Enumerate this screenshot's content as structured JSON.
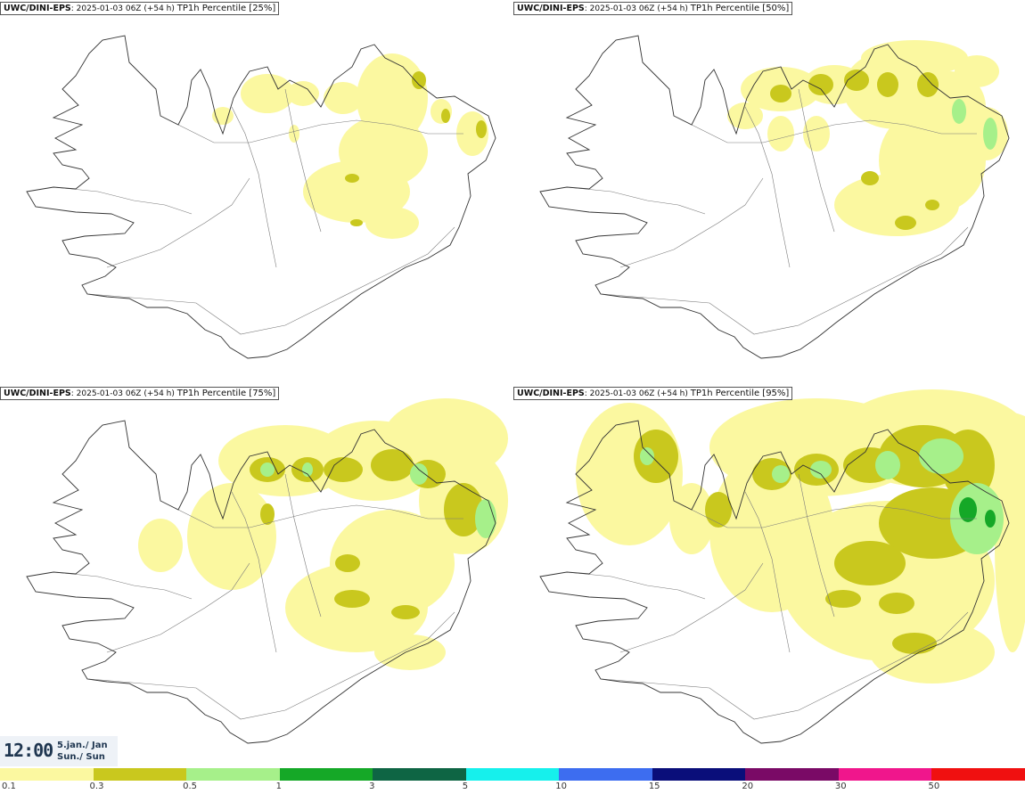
{
  "panels": [
    {
      "model": "UWC/DINI-EPS",
      "run": ": 2025-01-03 06Z (+54 h) ",
      "param": "TP1h Percentile [25%]",
      "level": 0
    },
    {
      "model": "UWC/DINI-EPS",
      "run": ": 2025-01-03 06Z (+54 h) ",
      "param": "TP1h Percentile [50%]",
      "level": 1
    },
    {
      "model": "UWC/DINI-EPS",
      "run": ": 2025-01-03 06Z (+54 h) ",
      "param": "TP1h Percentile [75%]",
      "level": 2
    },
    {
      "model": "UWC/DINI-EPS",
      "run": ": 2025-01-03 06Z (+54 h) ",
      "param": "TP1h Percentile [95%]",
      "level": 3
    }
  ],
  "valid_time": {
    "time": "12:00",
    "date_line1": "5.jan./ Jan",
    "date_line2": "Sun./ Sun"
  },
  "colorbar": {
    "colors": [
      "#fbf8a0",
      "#c9c81e",
      "#a6f08a",
      "#15a827",
      "#0e6544",
      "#16f0ec",
      "#3d6df0",
      "#0a0e7a",
      "#7a0a66",
      "#f0168c",
      "#f01010"
    ],
    "labels": [
      "0.1",
      "0.3",
      "0.5",
      "1",
      "3",
      "5",
      "10",
      "15",
      "20",
      "30",
      "50"
    ]
  }
}
